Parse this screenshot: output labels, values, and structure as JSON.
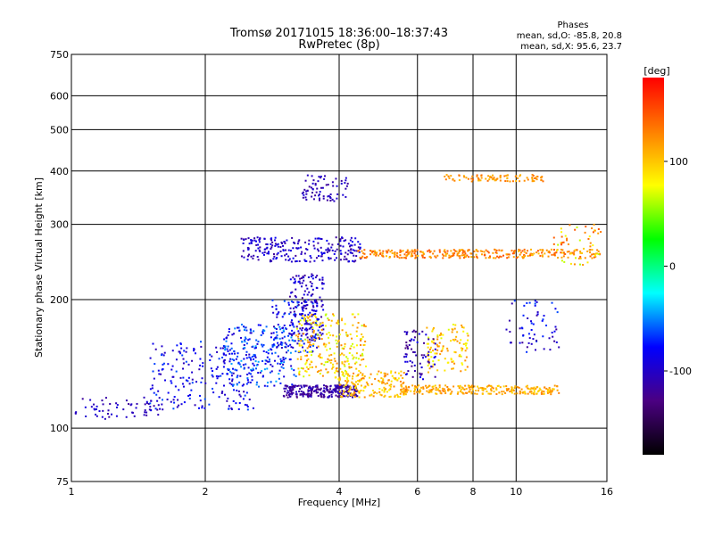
{
  "chart_data": {
    "type": "scatter",
    "title": "Tromsø 20171015 18:36:00–18:37:43",
    "subtitle": "RwPretec (8p)",
    "xlabel": "Frequency [MHz]",
    "ylabel": "Stationary phase Virtual Height [km]",
    "x_scale": "log",
    "y_scale": "log",
    "xlim": [
      1,
      16
    ],
    "ylim": [
      75,
      750
    ],
    "x_ticks": [
      1,
      2,
      4,
      6,
      8,
      10,
      16
    ],
    "x_ticklabels": [
      "1",
      "2",
      "4",
      "6",
      "8",
      "10",
      "16"
    ],
    "y_ticks": [
      75,
      100,
      200,
      300,
      400,
      500,
      600,
      750
    ],
    "y_ticklabels": [
      "75",
      "100",
      "200",
      "300",
      "400",
      "500",
      "600",
      "750"
    ],
    "grid": true,
    "colorbar": {
      "label": "[deg]",
      "range": [
        -180,
        180
      ],
      "ticks": [
        100,
        0,
        -100
      ],
      "ticklabels": [
        "100",
        "0",
        "-100"
      ],
      "colormap": [
        "#000000",
        "#4b0082",
        "#0000ff",
        "#00ffff",
        "#00ff00",
        "#ffff00",
        "#ff7f00",
        "#ff0000"
      ]
    },
    "stats": {
      "header": "Phases",
      "line1": "mean, sd,O: -85.8, 20.8",
      "line2": "mean, sd,X: 95.6, 23.7"
    },
    "clusters": [
      {
        "x": [
          1.02,
          1.6
        ],
        "y": [
          105,
          118
        ],
        "phase": [
          -120,
          -90
        ],
        "n": 60
      },
      {
        "x": [
          1.5,
          2.6
        ],
        "y": [
          110,
          160
        ],
        "phase": [
          -110,
          -60
        ],
        "n": 220
      },
      {
        "x": [
          2.2,
          3.2
        ],
        "y": [
          125,
          175
        ],
        "phase": [
          -100,
          -40
        ],
        "n": 220
      },
      {
        "x": [
          2.8,
          3.6
        ],
        "y": [
          150,
          200
        ],
        "phase": [
          -110,
          -50
        ],
        "n": 120
      },
      {
        "x": [
          3.0,
          4.4
        ],
        "y": [
          118,
          126
        ],
        "phase": [
          -130,
          -100
        ],
        "n": 250
      },
      {
        "x": [
          3.1,
          3.7
        ],
        "y": [
          160,
          230
        ],
        "phase": [
          -120,
          -80
        ],
        "n": 150
      },
      {
        "x": [
          3.2,
          4.6
        ],
        "y": [
          130,
          185
        ],
        "phase": [
          60,
          130
        ],
        "n": 250
      },
      {
        "x": [
          4.0,
          5.6
        ],
        "y": [
          118,
          136
        ],
        "phase": [
          80,
          130
        ],
        "n": 160
      },
      {
        "x": [
          5.5,
          12.5
        ],
        "y": [
          120,
          126
        ],
        "phase": [
          90,
          130
        ],
        "n": 260
      },
      {
        "x": [
          6.3,
          7.8
        ],
        "y": [
          135,
          175
        ],
        "phase": [
          70,
          130
        ],
        "n": 110
      },
      {
        "x": [
          5.6,
          6.6
        ],
        "y": [
          130,
          170
        ],
        "phase": [
          -130,
          -80
        ],
        "n": 70
      },
      {
        "x": [
          9.5,
          12.5
        ],
        "y": [
          150,
          200
        ],
        "phase": [
          -120,
          -60
        ],
        "n": 60
      },
      {
        "x": [
          2.4,
          4.5
        ],
        "y": [
          245,
          280
        ],
        "phase": [
          -120,
          -80
        ],
        "n": 230
      },
      {
        "x": [
          3.3,
          4.2
        ],
        "y": [
          340,
          395
        ],
        "phase": [
          -120,
          -90
        ],
        "n": 70
      },
      {
        "x": [
          4.4,
          15.5
        ],
        "y": [
          250,
          262
        ],
        "phase": [
          100,
          150
        ],
        "n": 320
      },
      {
        "x": [
          12.0,
          15.5
        ],
        "y": [
          240,
          300
        ],
        "phase": [
          60,
          150
        ],
        "n": 60
      },
      {
        "x": [
          6.9,
          11.5
        ],
        "y": [
          378,
          392
        ],
        "phase": [
          100,
          140
        ],
        "n": 90
      }
    ]
  }
}
